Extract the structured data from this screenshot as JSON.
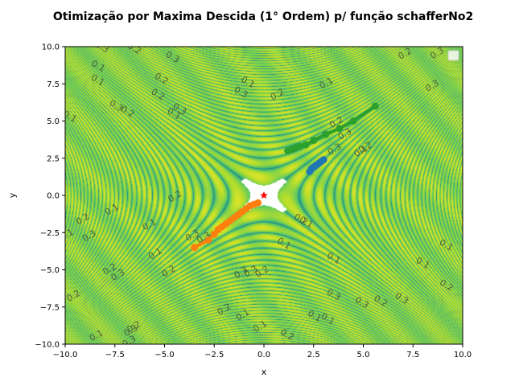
{
  "chart_data": {
    "type": "scatter",
    "title": "Otimização por Maxima Descida (1° Ordem) p/ função schafferNo2",
    "xlabel": "x",
    "ylabel": "y",
    "xlim": [
      -10,
      10
    ],
    "ylim": [
      -10,
      10
    ],
    "x_ticks": [
      "−10.0",
      "−7.5",
      "−5.0",
      "−2.5",
      "0.0",
      "2.5",
      "5.0",
      "7.5",
      "10.0"
    ],
    "y_ticks": [
      "−10.0",
      "−7.5",
      "−5.0",
      "−2.5",
      "0.0",
      "2.5",
      "5.0",
      "7.5",
      "10.0"
    ],
    "x_tick_values": [
      -10,
      -7.5,
      -5,
      -2.5,
      0,
      2.5,
      5,
      7.5,
      10
    ],
    "y_tick_values": [
      -10,
      -7.5,
      -5,
      -2.5,
      0,
      2.5,
      5,
      7.5,
      10
    ],
    "background": "contour plot of schafferNo2 (viridis colormap, hyperbolic bands around origin)",
    "contour_labels": [
      "0.1",
      "0.2",
      "0.3"
    ],
    "legend": {
      "placement": "top-right",
      "entries": []
    },
    "grid": false,
    "series": [
      {
        "color": "#ff7f0e",
        "x": [
          -3.5,
          -2.8,
          -2.5,
          -2.3,
          -2.1,
          -1.9,
          -1.7,
          -1.5,
          -1.3,
          -1.1,
          -0.9,
          -0.7,
          -0.5,
          -0.3
        ],
        "y": [
          -3.5,
          -3.0,
          -2.6,
          -2.3,
          -2.1,
          -1.9,
          -1.7,
          -1.5,
          -1.3,
          -1.1,
          -0.9,
          -0.7,
          -0.6,
          -0.5
        ]
      },
      {
        "color": "#2ca02c",
        "x": [
          5.6,
          4.5,
          3.8,
          3.1,
          2.5,
          2.1,
          1.8,
          1.6,
          1.4,
          1.2
        ],
        "y": [
          6.0,
          5.0,
          4.5,
          4.1,
          3.7,
          3.4,
          3.3,
          3.2,
          3.1,
          3.0
        ]
      },
      {
        "color": "#1f77b4",
        "x": [
          3.0,
          2.9,
          2.8,
          2.7,
          2.6,
          2.5,
          2.4,
          2.3
        ],
        "y": [
          2.4,
          2.3,
          2.2,
          2.1,
          2.0,
          1.9,
          1.8,
          1.6
        ]
      }
    ],
    "optimum": {
      "x": 0,
      "y": 0,
      "marker": "star",
      "color": "#ff0000"
    }
  }
}
